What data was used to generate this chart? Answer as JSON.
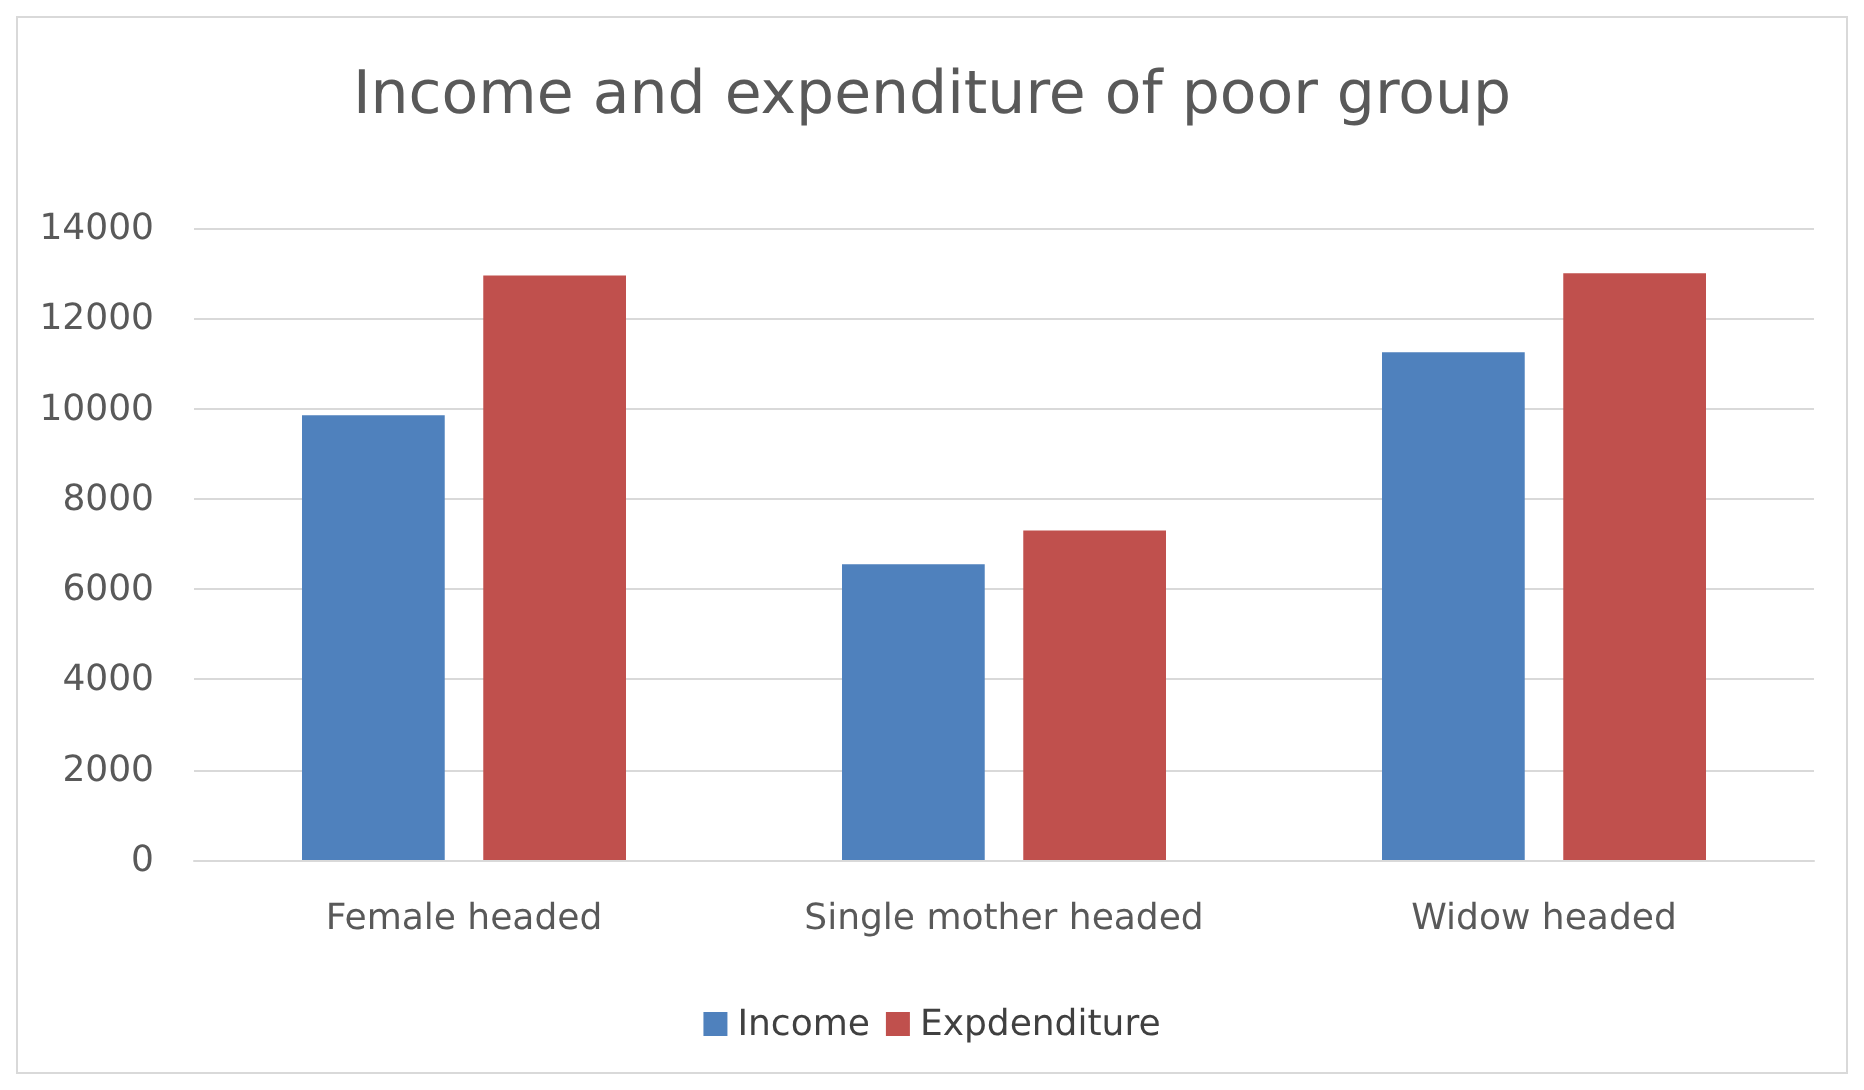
{
  "chart_data": {
    "type": "bar",
    "title": "Income and expenditure of poor group",
    "categories": [
      "Female headed",
      "Single mother headed",
      "Widow headed"
    ],
    "series": [
      {
        "name": "Income",
        "color": "#4f81bd",
        "values": [
          9850,
          6550,
          11250
        ]
      },
      {
        "name": "Expdenditure",
        "color": "#c0504d",
        "values": [
          12950,
          7300,
          13000
        ]
      }
    ],
    "ylim": [
      0,
      14000
    ],
    "yticks": [
      0,
      2000,
      4000,
      6000,
      8000,
      10000,
      12000,
      14000
    ],
    "grid": "y",
    "legend": "bottom"
  }
}
